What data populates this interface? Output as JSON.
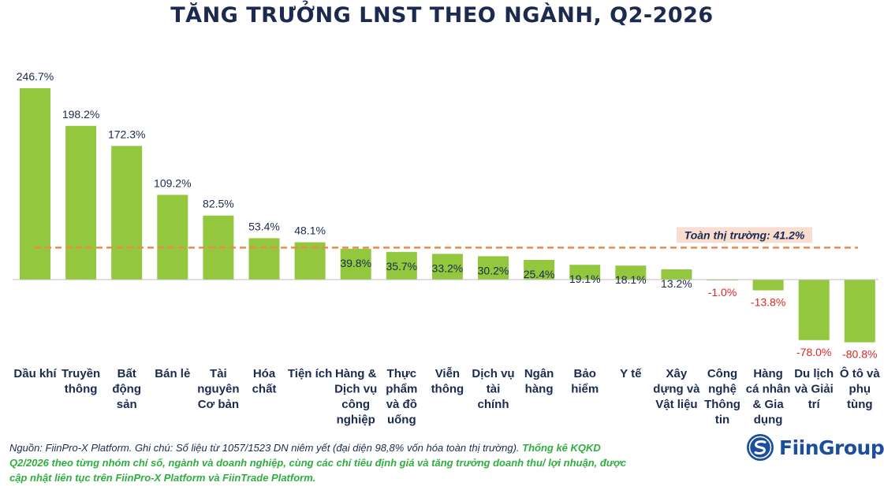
{
  "chart_data": {
    "type": "bar",
    "title": "TĂNG TRƯỞNG LNST THEO NGÀNH, Q2-2026",
    "categories": [
      "Dầu khí",
      "Truyền thông",
      "Bất động sản",
      "Bán lẻ",
      "Tài nguyên Cơ bản",
      "Hóa chất",
      "Tiện ích",
      "Hàng & Dịch vụ công nghiệp",
      "Thực phẩm và đồ uống",
      "Viễn thông",
      "Dịch vụ tài chính",
      "Ngân hàng",
      "Bảo hiểm",
      "Y tế",
      "Xây dựng và Vật liệu",
      "Công nghệ Thông tin",
      "Hàng cá nhân & Gia dụng",
      "Du lịch và Giải trí",
      "Ô tô và phụ tùng"
    ],
    "category_lines": [
      [
        "Dầu khí"
      ],
      [
        "Truyền",
        "thông"
      ],
      [
        "Bất",
        "động",
        "sản"
      ],
      [
        "Bán lẻ"
      ],
      [
        "Tài",
        "nguyên",
        "Cơ bản"
      ],
      [
        "Hóa",
        "chất"
      ],
      [
        "Tiện ích"
      ],
      [
        "Hàng &",
        "Dịch vụ",
        "công",
        "nghiệp"
      ],
      [
        "Thực",
        "phẩm",
        "và đồ",
        "uống"
      ],
      [
        "Viễn",
        "thông"
      ],
      [
        "Dịch vụ",
        "tài",
        "chính"
      ],
      [
        "Ngân",
        "hàng"
      ],
      [
        "Bảo",
        "hiểm"
      ],
      [
        "Y tế"
      ],
      [
        "Xây",
        "dựng và",
        "Vật liệu"
      ],
      [
        "Công",
        "nghệ",
        "Thông",
        "tin"
      ],
      [
        "Hàng",
        "cá nhân",
        "& Gia",
        "dụng"
      ],
      [
        "Du lịch",
        "và Giải",
        "trí"
      ],
      [
        "Ô tô và",
        "phụ",
        "tùng"
      ]
    ],
    "values": [
      246.7,
      198.2,
      172.3,
      109.2,
      82.5,
      53.4,
      48.1,
      39.8,
      35.7,
      33.2,
      30.2,
      25.4,
      19.1,
      18.1,
      13.2,
      -1.0,
      -13.8,
      -78.0,
      -80.8
    ],
    "labels": [
      "246.7%",
      "198.2%",
      "172.3%",
      "109.2%",
      "82.5%",
      "53.4%",
      "48.1%",
      "39.8%",
      "35.7%",
      "33.2%",
      "30.2%",
      "25.4%",
      "19.1%",
      "18.1%",
      "13.2%",
      "-1.0%",
      "-13.8%",
      "-78.0%",
      "-80.8%"
    ],
    "reference_line": {
      "value": 41.2,
      "label": "Toàn thị trường: 41.2%"
    },
    "xlabel": "",
    "ylabel": "",
    "ylim": [
      -100,
      260
    ],
    "grid": false,
    "colors": {
      "bar": "#93c83e",
      "reference": "#ee8b4a",
      "positive_label": "#1b2a4e",
      "negative_label": "#e02424"
    }
  },
  "footnote": {
    "plain": "Nguồn: FiinPro-X Platform. Ghi chú: Số liệu từ 1057/1523 DN niêm yết (đại diện 98,8% vốn hóa toàn thị trường).",
    "highlight": "Thống kê KQKD Q2/2026 theo từng nhóm chỉ số, ngành và doanh nghiệp, cùng các chỉ tiêu định giá và tăng trưởng doanh thu/ lợi nhuận, được cập nhật liên tục trên FiinPro-X Platform và FiinTrade Platform."
  },
  "logo": {
    "text": "FiinGroup",
    "icon": "fiingroup-logo-icon"
  }
}
